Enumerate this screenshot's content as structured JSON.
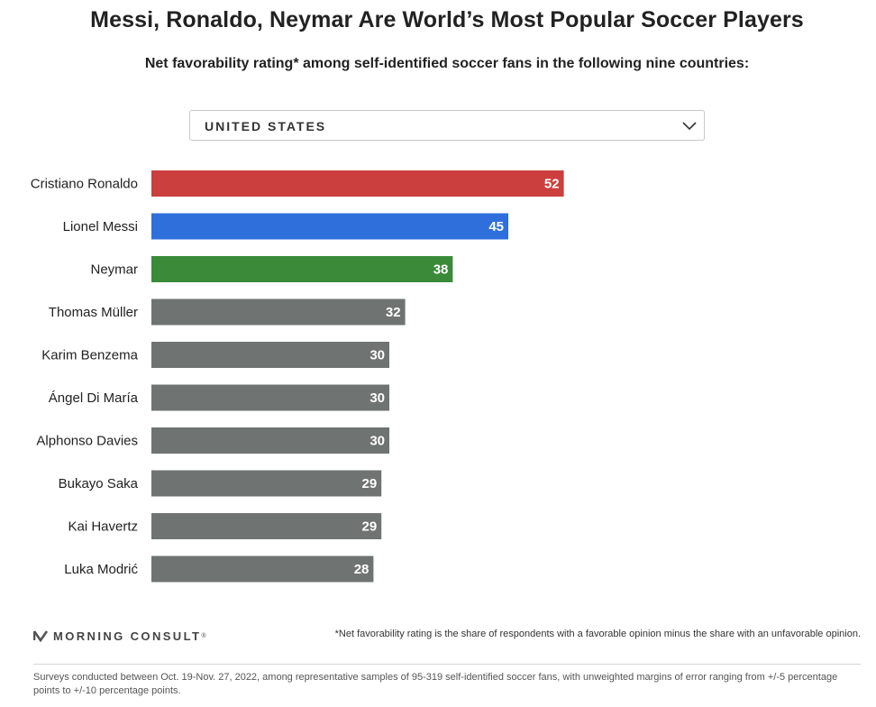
{
  "header": {
    "title": "Messi, Ronaldo, Neymar Are World’s Most Popular Soccer Players",
    "subtitle": "Net favorability rating* among self-identified soccer fans in the following nine countries:"
  },
  "country_select": {
    "selected": "UNITED STATES",
    "icon": "chevron-down-icon"
  },
  "chart_data": {
    "type": "bar",
    "orientation": "horizontal",
    "categories": [
      "Cristiano Ronaldo",
      "Lionel Messi",
      "Neymar",
      "Thomas Müller",
      "Karim Benzema",
      "Ángel Di María",
      "Alphonso Davies",
      "Bukayo Saka",
      "Kai Havertz",
      "Luka Modrić"
    ],
    "values": [
      52,
      45,
      38,
      32,
      30,
      30,
      30,
      29,
      29,
      28
    ],
    "colors": [
      "#cc3f3f",
      "#2e6fdb",
      "#3a8a3a",
      "#6f7372",
      "#6f7372",
      "#6f7372",
      "#6f7372",
      "#6f7372",
      "#6f7372",
      "#6f7372"
    ],
    "data_labels": true,
    "grid": false
  },
  "footer": {
    "logo_text": "MORNING CONSULT",
    "logo_tm": "®",
    "footnote": "*Net favorability rating is the share of respondents with a favorable opinion minus the share with an unfavorable opinion.",
    "source": "Surveys conducted between Oct. 19-Nov. 27, 2022, among representative samples of 95-319 self-identified soccer fans, with unweighted margins of error ranging from +/-5 percentage points to +/-10 percentage points."
  }
}
